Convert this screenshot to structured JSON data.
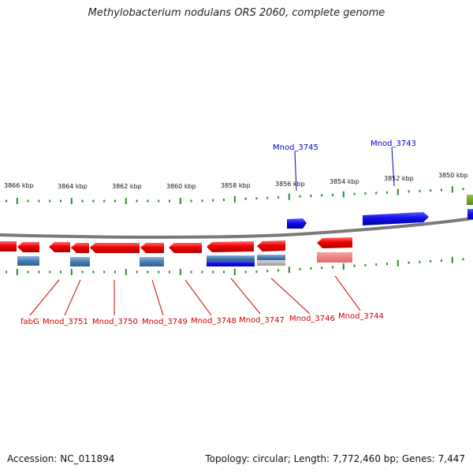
{
  "title": "Methylobacterium nodulans ORS 2060, complete genome",
  "footer": {
    "accession": "Accession: NC_011894",
    "topology": "Topology: circular; Length: 7,772,460 bp; Genes: 7,447"
  },
  "colors": {
    "forward_gene": "#1010e8",
    "reverse_gene": "#e80000",
    "label_forward": "#0000cc",
    "label_reverse": "#cc0000",
    "rna_pale_red": "#f08080",
    "steel_blue": "#4a7fb5",
    "tick_green": "#2a8a2a",
    "backbone": "#888888"
  },
  "scale": {
    "ticks": [
      "3866 kbp",
      "3864 kbp",
      "3862 kbp",
      "3860 kbp",
      "3858 kbp",
      "3856 kbp",
      "3854 kbp",
      "3852 kbp",
      "3850 kbp"
    ]
  },
  "labels": {
    "forward": [
      "Mnod_3745",
      "Mnod_3743"
    ],
    "reverse": [
      "fabG",
      "Mnod_3751",
      "Mnod_3750",
      "Mnod_3749",
      "Mnod_3748",
      "Mnod_3747",
      "Mnod_3746",
      "Mnod_3744"
    ]
  }
}
